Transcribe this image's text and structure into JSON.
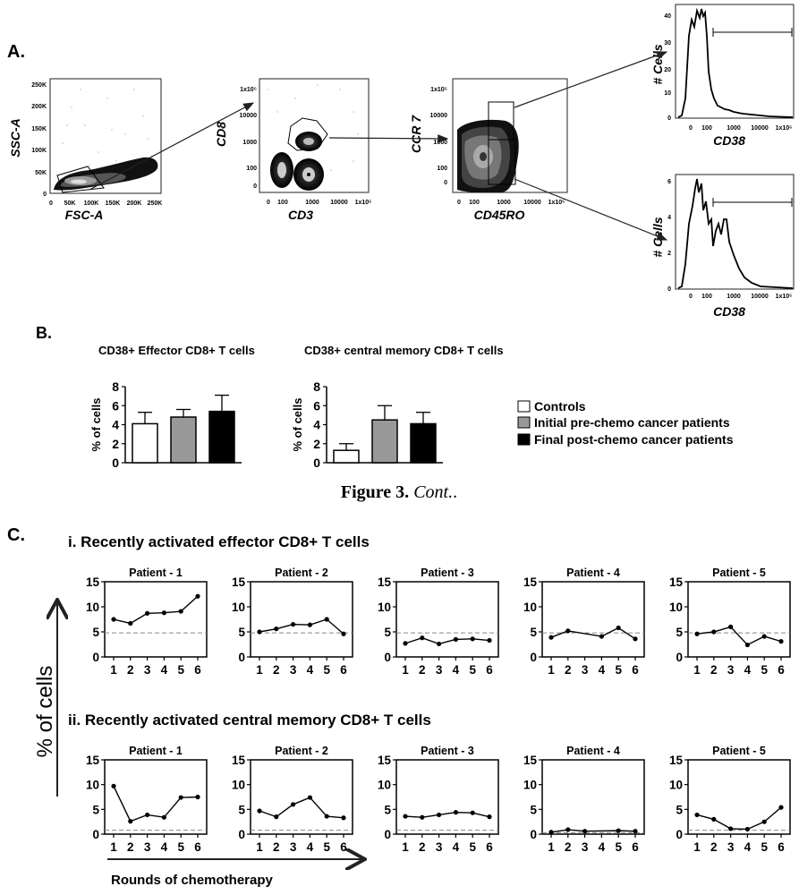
{
  "panel_labels": {
    "a": "A.",
    "b": "B.",
    "c": "C."
  },
  "caption": {
    "bold": "Figure 3.",
    "italic": "Cont."
  },
  "flow": {
    "plot1": {
      "ylabel": "SSC-A",
      "xlabel": "FSC-A",
      "yticks": [
        "250K",
        "200K",
        "150K",
        "100K",
        "50K",
        "0"
      ],
      "xticks": [
        "0",
        "50K",
        "100K",
        "150K",
        "200K",
        "250K"
      ]
    },
    "plot2": {
      "ylabel": "CD8",
      "xlabel": "CD3",
      "yticks": [
        "1x10⁵",
        "10000",
        "1000",
        "100",
        "0"
      ],
      "xticks": [
        "0",
        "100",
        "1000",
        "10000",
        "1x10⁵"
      ]
    },
    "plot3": {
      "ylabel": "CCR 7",
      "xlabel": "CD45RO",
      "yticks": [
        "1x10⁵",
        "10000",
        "1000",
        "100",
        "0"
      ],
      "xticks": [
        "0",
        "100",
        "1000",
        "10000",
        "1x10⁵"
      ]
    },
    "hist_top": {
      "ylabel": "# Cells",
      "xlabel": "CD38",
      "yticks": [
        "40",
        "30",
        "20",
        "10",
        "0"
      ],
      "xticks": [
        "0",
        "100",
        "1000",
        "10000",
        "1x10⁵"
      ]
    },
    "hist_bottom": {
      "ylabel": "# Cells",
      "xlabel": "CD38",
      "yticks": [
        "6",
        "4",
        "2",
        "0"
      ],
      "xticks": [
        "0",
        "100",
        "1000",
        "10000",
        "1x10⁵"
      ]
    }
  },
  "legend": {
    "items": [
      {
        "label": "Controls",
        "color": "#ffffff"
      },
      {
        "label": "Initial pre-chemo cancer patients",
        "color": "#999999"
      },
      {
        "label": "Final post-chemo cancer patients",
        "color": "#000000"
      }
    ]
  },
  "section_c": {
    "row_i_title": "i. Recently activated effector CD8+ T cells",
    "row_ii_title": "ii. Recently activated central memory CD8+ T cells",
    "y_axis_label": "% of cells",
    "x_axis_label": "Rounds of chemotherapy"
  },
  "colors": {
    "dashed_line": "#888888",
    "marker": "#000000"
  },
  "chart_data": [
    {
      "type": "bar",
      "title": "CD38+ Effector CD8+ T cells",
      "ylabel": "% of cells",
      "ylim": [
        0,
        8
      ],
      "yticks": [
        0,
        2,
        4,
        6,
        8
      ],
      "categories": [
        "Controls",
        "Initial pre-chemo cancer patients",
        "Final post-chemo cancer patients"
      ],
      "values": [
        4.1,
        4.8,
        5.4
      ],
      "errors": [
        1.2,
        0.8,
        1.7
      ]
    },
    {
      "type": "bar",
      "title": "CD38+ central memory CD8+ T cells",
      "ylabel": "% of cells",
      "ylim": [
        0,
        8
      ],
      "yticks": [
        0,
        2,
        4,
        6,
        8
      ],
      "categories": [
        "Controls",
        "Initial pre-chemo cancer patients",
        "Final post-chemo cancer patients"
      ],
      "values": [
        1.3,
        4.5,
        4.1
      ],
      "errors": [
        0.7,
        1.5,
        1.2
      ]
    },
    {
      "type": "line",
      "title": "Patient - 1",
      "group": "i",
      "x": [
        1,
        2,
        3,
        4,
        5,
        6
      ],
      "y": [
        7.5,
        6.7,
        8.7,
        8.8,
        9.1,
        12.1
      ],
      "reference": 4.8,
      "ylim": [
        0,
        15
      ],
      "yticks": [
        0,
        5,
        10,
        15
      ]
    },
    {
      "type": "line",
      "title": "Patient - 2",
      "group": "i",
      "x": [
        1,
        2,
        3,
        4,
        5,
        6
      ],
      "y": [
        5.0,
        5.6,
        6.5,
        6.4,
        7.5,
        4.6
      ],
      "reference": 4.8,
      "ylim": [
        0,
        15
      ],
      "yticks": [
        0,
        5,
        10,
        15
      ]
    },
    {
      "type": "line",
      "title": "Patient - 3",
      "group": "i",
      "x": [
        1,
        2,
        3,
        4,
        5,
        6
      ],
      "y": [
        2.7,
        3.8,
        2.6,
        3.5,
        3.6,
        3.3
      ],
      "reference": 4.8,
      "ylim": [
        0,
        15
      ],
      "yticks": [
        0,
        5,
        10,
        15
      ]
    },
    {
      "type": "line",
      "title": "Patient - 4",
      "group": "i",
      "x": [
        1,
        2,
        4,
        5,
        6
      ],
      "y": [
        3.9,
        5.2,
        4.1,
        5.8,
        3.6
      ],
      "reference": 4.8,
      "ylim": [
        0,
        15
      ],
      "yticks": [
        0,
        5,
        10,
        15
      ]
    },
    {
      "type": "line",
      "title": "Patient - 5",
      "group": "i",
      "x": [
        1,
        2,
        3,
        4,
        5,
        6
      ],
      "y": [
        4.6,
        5.0,
        6.0,
        2.4,
        4.1,
        3.1
      ],
      "reference": 4.8,
      "ylim": [
        0,
        15
      ],
      "yticks": [
        0,
        5,
        10,
        15
      ]
    },
    {
      "type": "line",
      "title": "Patient - 1",
      "group": "ii",
      "x": [
        1,
        2,
        3,
        4,
        5,
        6
      ],
      "y": [
        9.7,
        2.6,
        3.9,
        3.4,
        7.4,
        7.5
      ],
      "reference": 0.8,
      "ylim": [
        0,
        15
      ],
      "yticks": [
        0,
        5,
        10,
        15
      ]
    },
    {
      "type": "line",
      "title": "Patient - 2",
      "group": "ii",
      "x": [
        1,
        2,
        3,
        4,
        5,
        6
      ],
      "y": [
        4.7,
        3.5,
        6.0,
        7.4,
        3.6,
        3.3
      ],
      "reference": 0.8,
      "ylim": [
        0,
        15
      ],
      "yticks": [
        0,
        5,
        10,
        15
      ]
    },
    {
      "type": "line",
      "title": "Patient - 3",
      "group": "ii",
      "x": [
        1,
        2,
        3,
        4,
        5,
        6
      ],
      "y": [
        3.6,
        3.4,
        3.9,
        4.4,
        4.3,
        3.5
      ],
      "reference": 0.8,
      "ylim": [
        0,
        15
      ],
      "yticks": [
        0,
        5,
        10,
        15
      ]
    },
    {
      "type": "line",
      "title": "Patient - 4",
      "group": "ii",
      "x": [
        1,
        2,
        3,
        5,
        6
      ],
      "y": [
        0.4,
        0.9,
        0.6,
        0.7,
        0.6
      ],
      "reference": 0.3,
      "ylim": [
        0,
        15
      ],
      "yticks": [
        0,
        5,
        10,
        15
      ]
    },
    {
      "type": "line",
      "title": "Patient - 5",
      "group": "ii",
      "x": [
        1,
        2,
        3,
        4,
        5,
        6
      ],
      "y": [
        3.9,
        3.0,
        1.1,
        1.0,
        2.5,
        5.4
      ],
      "reference": 0.8,
      "ylim": [
        0,
        15
      ],
      "yticks": [
        0,
        5,
        10,
        15
      ]
    }
  ]
}
